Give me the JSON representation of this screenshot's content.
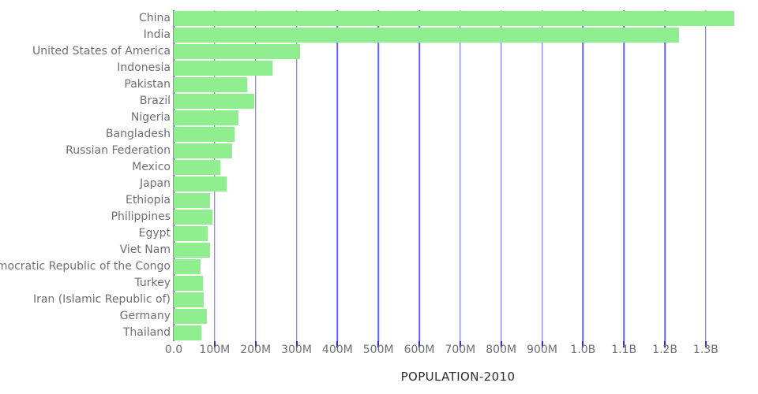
{
  "colors": {
    "background": "#ffffff",
    "bar": "#90ee90",
    "grid": "#4747ff",
    "tick": "#2d2dd8",
    "label": "#6e6e78",
    "title": "#2c2c2c"
  },
  "chart_data": {
    "type": "bar",
    "orientation": "horizontal",
    "title": "POPULATION-2010",
    "xlabel": "POPULATION-2010",
    "ylabel": "",
    "grid": true,
    "legend": false,
    "categories": [
      "China",
      "India",
      "United States of America",
      "Indonesia",
      "Pakistan",
      "Brazil",
      "Nigeria",
      "Bangladesh",
      "Russian Federation",
      "Mexico",
      "Japan",
      "Ethiopia",
      "Philippines",
      "Egypt",
      "Viet Nam",
      "Democratic Republic of the Congo",
      "Turkey",
      "Iran (Islamic Republic of)",
      "Germany",
      "Thailand"
    ],
    "values_millions": [
      1369,
      1234,
      309,
      242,
      179,
      196,
      158,
      148,
      143,
      114,
      129,
      88,
      94,
      83,
      88,
      65,
      72,
      74,
      81,
      67
    ],
    "x_axis": {
      "tick_labels": [
        "0.0",
        "100M",
        "200M",
        "300M",
        "400M",
        "500M",
        "600M",
        "700M",
        "800M",
        "900M",
        "1.0B",
        "1.1B",
        "1.2B",
        "1.3B"
      ],
      "tick_values_millions": [
        0,
        100,
        200,
        300,
        400,
        500,
        600,
        700,
        800,
        900,
        1000,
        1100,
        1200,
        1300
      ],
      "xlim_millions": [
        0,
        1389
      ]
    }
  }
}
